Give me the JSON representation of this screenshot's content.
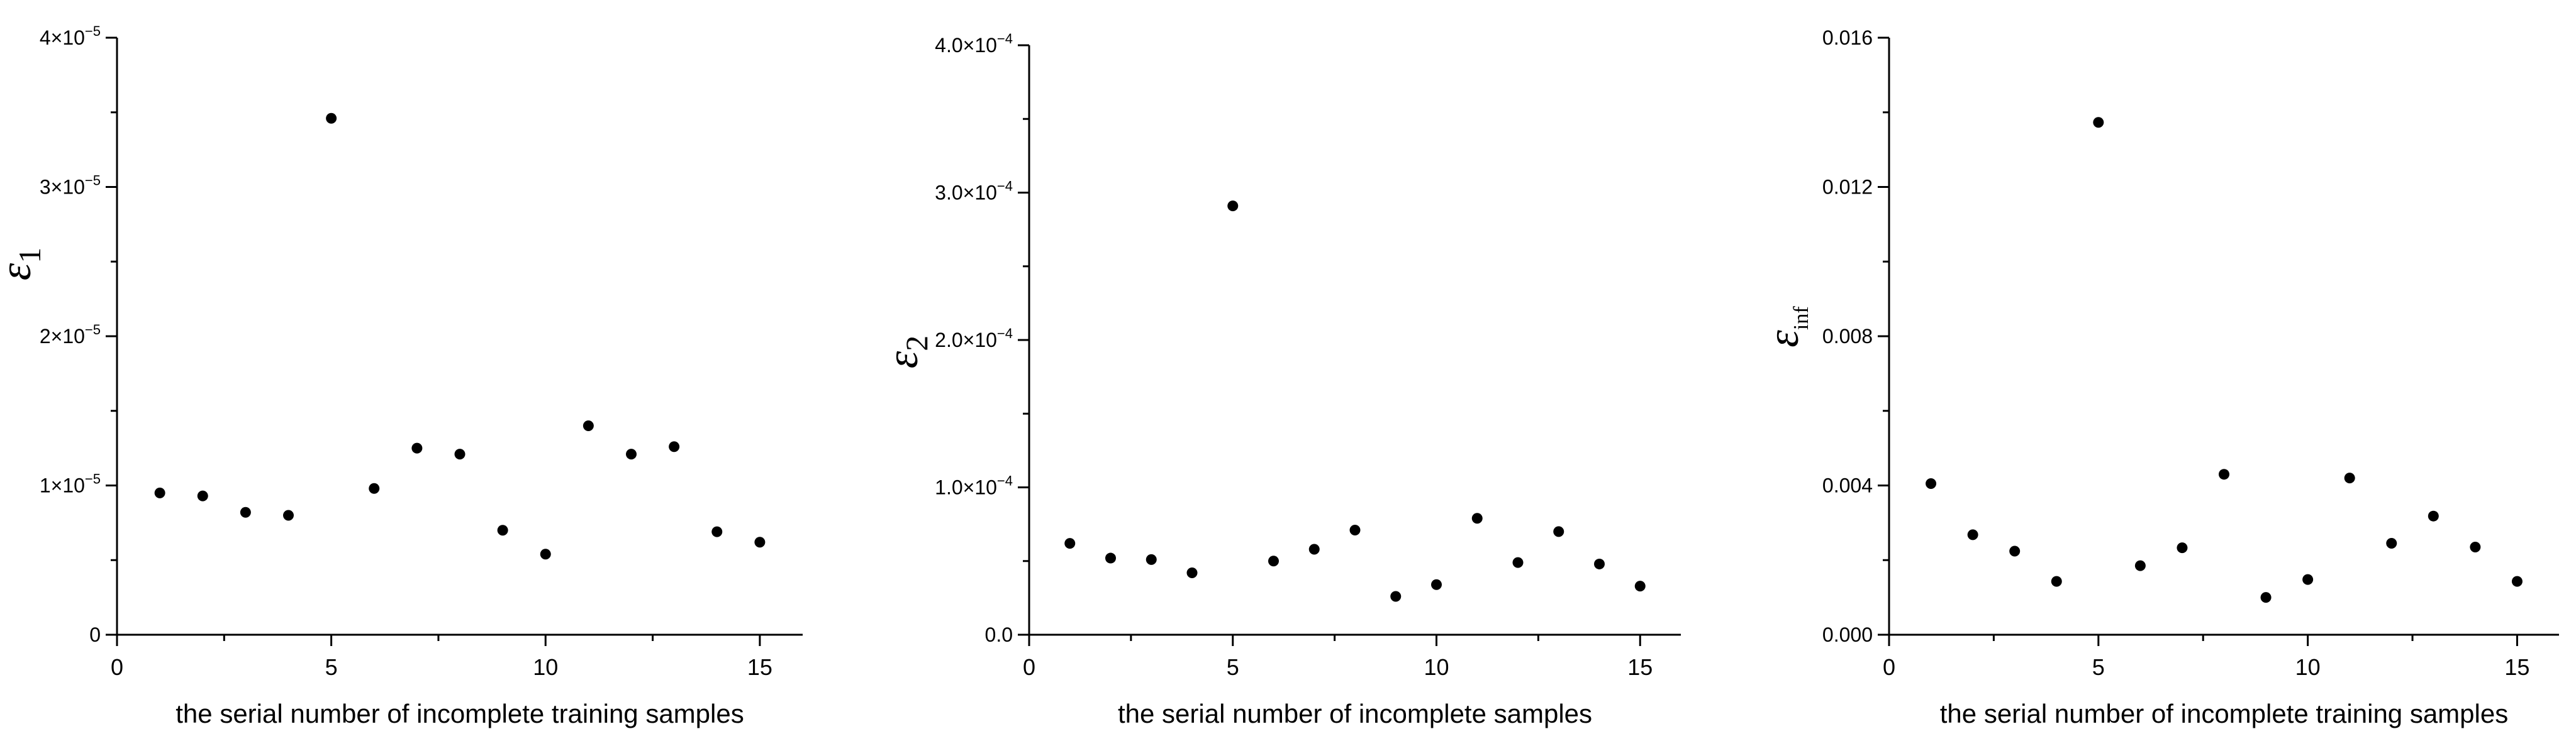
{
  "chart_data": [
    {
      "type": "scatter",
      "xlabel": "the serial number of incomplete training samples",
      "ylabel": "ε",
      "ylabel_sub": "1",
      "xlim": [
        0,
        16
      ],
      "ylim": [
        0,
        4e-05
      ],
      "xticks": [
        0,
        5,
        10,
        15
      ],
      "yticks": [
        0,
        1e-05,
        2e-05,
        3e-05,
        4e-05
      ],
      "ytick_labels": [
        {
          "base": "0",
          "exp": ""
        },
        {
          "base": "1×10",
          "exp": "−5"
        },
        {
          "base": "2×10",
          "exp": "−5"
        },
        {
          "base": "3×10",
          "exp": "−5"
        },
        {
          "base": "4×10",
          "exp": "−5"
        }
      ],
      "x": [
        1,
        2,
        3,
        4,
        5,
        6,
        7,
        8,
        9,
        10,
        11,
        12,
        13,
        14,
        15
      ],
      "y": [
        9.5e-06,
        9.3e-06,
        8.2e-06,
        8e-06,
        3.46e-05,
        9.8e-06,
        1.25e-05,
        1.21e-05,
        7e-06,
        5.4e-06,
        1.4e-05,
        1.21e-05,
        1.26e-05,
        6.9e-06,
        6.2e-06
      ]
    },
    {
      "type": "scatter",
      "xlabel": "the serial number of incomplete samples",
      "ylabel": "ε",
      "ylabel_sub": "2",
      "xlim": [
        0,
        16
      ],
      "ylim": [
        0,
        0.0004
      ],
      "xticks": [
        0,
        5,
        10,
        15
      ],
      "yticks": [
        0,
        0.0001,
        0.0002,
        0.0003,
        0.0004
      ],
      "ytick_labels": [
        {
          "base": "0.0",
          "exp": ""
        },
        {
          "base": "1.0×10",
          "exp": "−4"
        },
        {
          "base": "2.0×10",
          "exp": "−4"
        },
        {
          "base": "3.0×10",
          "exp": "−4"
        },
        {
          "base": "4.0×10",
          "exp": "−4"
        }
      ],
      "x": [
        1,
        2,
        3,
        4,
        5,
        6,
        7,
        8,
        9,
        10,
        11,
        12,
        13,
        14,
        15
      ],
      "y": [
        6.2e-05,
        5.2e-05,
        5.1e-05,
        4.2e-05,
        0.000291,
        5e-05,
        5.8e-05,
        7.1e-05,
        2.6e-05,
        3.4e-05,
        7.9e-05,
        4.9e-05,
        7e-05,
        4.8e-05,
        3.3e-05
      ]
    },
    {
      "type": "scatter",
      "xlabel": "the serial number of incomplete training samples",
      "ylabel": "ε",
      "ylabel_sub": "inf",
      "xlim": [
        0,
        16
      ],
      "ylim": [
        0,
        0.016
      ],
      "xticks": [
        0,
        5,
        10,
        15
      ],
      "yticks": [
        0,
        0.004,
        0.008,
        0.012,
        0.016
      ],
      "ytick_labels": [
        {
          "base": "0.000",
          "exp": ""
        },
        {
          "base": "0.004",
          "exp": ""
        },
        {
          "base": "0.008",
          "exp": ""
        },
        {
          "base": "0.012",
          "exp": ""
        },
        {
          "base": "0.016",
          "exp": ""
        }
      ],
      "x": [
        1,
        2,
        3,
        4,
        5,
        6,
        7,
        8,
        9,
        10,
        11,
        12,
        13,
        14,
        15
      ],
      "y": [
        0.00405,
        0.00268,
        0.00224,
        0.00143,
        0.01373,
        0.00185,
        0.00233,
        0.0043,
        0.001,
        0.00148,
        0.0042,
        0.00245,
        0.00318,
        0.00235,
        0.00143
      ]
    }
  ]
}
